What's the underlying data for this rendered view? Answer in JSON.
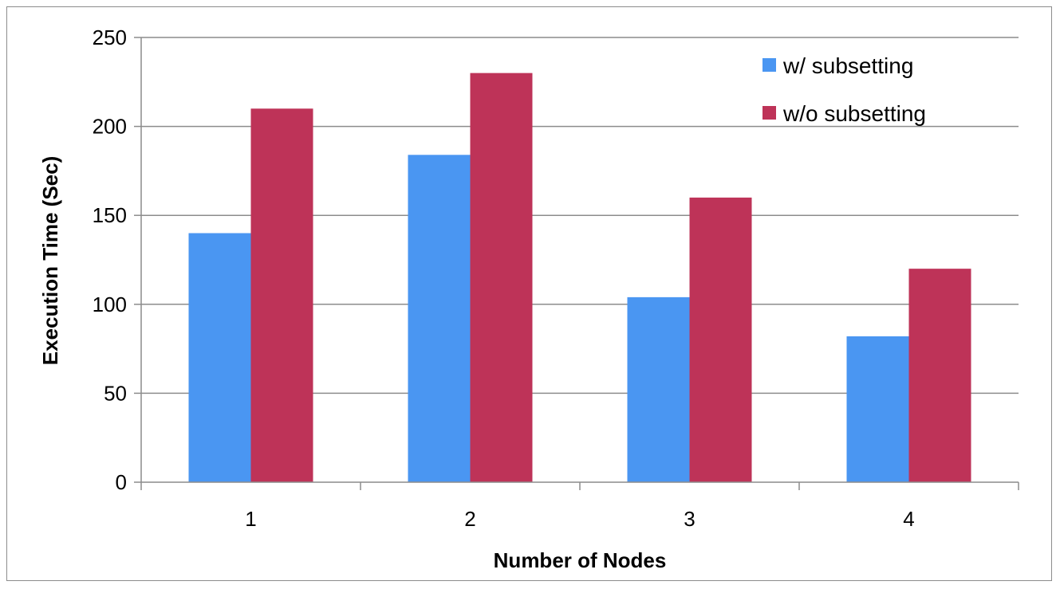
{
  "chart_data": {
    "type": "bar",
    "title": "",
    "categories": [
      "1",
      "2",
      "3",
      "4"
    ],
    "series": [
      {
        "name": "w/ subsetting",
        "color": "#4a96f2",
        "values": [
          140,
          184,
          104,
          82
        ]
      },
      {
        "name": "w/o subsetting",
        "color": "#be3358",
        "values": [
          210,
          230,
          160,
          120
        ]
      }
    ],
    "xlabel": "Number of Nodes",
    "ylabel": "Execution Time (Sec)",
    "ylim": [
      0,
      250
    ],
    "yticks": [
      "0",
      "50",
      "100",
      "150",
      "200",
      "250"
    ],
    "grid": true,
    "legend": "top-right"
  }
}
